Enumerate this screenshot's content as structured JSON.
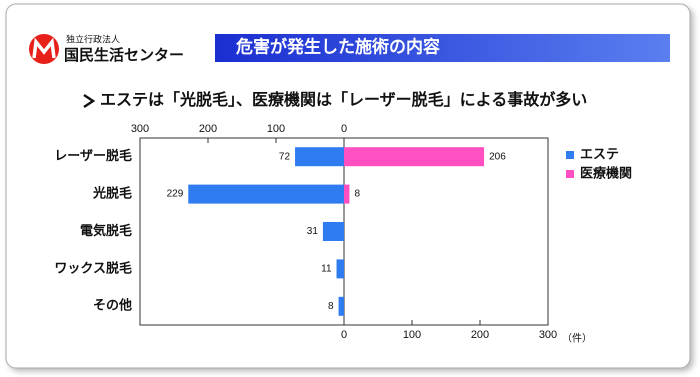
{
  "header": {
    "org_small": "独立行政法人",
    "org": "国民生活センター",
    "title": "危害が発生した施術の内容"
  },
  "chart_data": {
    "type": "diverging-bar",
    "subtitle": "エステは「光脱毛」、医療機関は「レーザー脱毛」による事故が多い",
    "categories": [
      "レーザー脱毛",
      "光脱毛",
      "電気脱毛",
      "ワックス脱毛",
      "その他"
    ],
    "series": [
      {
        "name": "エステ",
        "color": "#2f7cf0",
        "side": "left",
        "values": [
          72,
          229,
          31,
          11,
          8
        ]
      },
      {
        "name": "医療機関",
        "color": "#ff4fc0",
        "side": "right",
        "values": [
          206,
          8,
          null,
          null,
          null
        ]
      }
    ],
    "xlim": [
      0,
      300
    ],
    "top_xticks": [
      300,
      200,
      100,
      0
    ],
    "xticks": [
      0,
      100,
      200,
      300
    ],
    "unit_label": "（件）",
    "grid": false,
    "legend": "right"
  }
}
